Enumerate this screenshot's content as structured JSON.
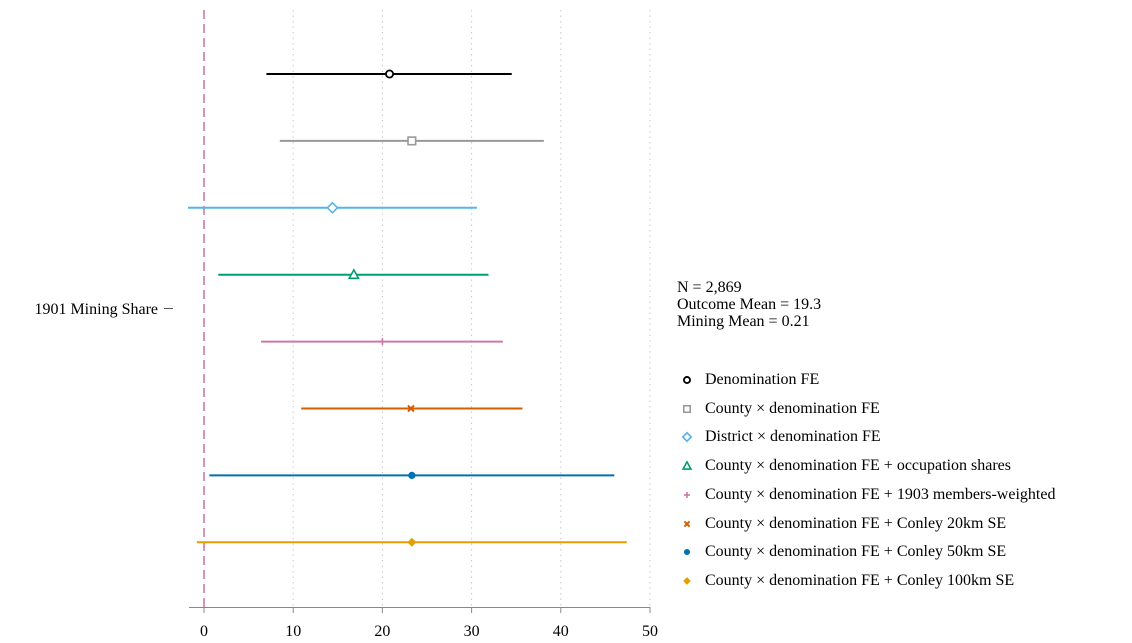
{
  "chart_data": {
    "type": "coefficient-plot",
    "orientation": "horizontal",
    "y_category": "1901 Mining Share",
    "xlim": [
      0,
      50
    ],
    "x_ticks": [
      0,
      10,
      20,
      30,
      40,
      50
    ],
    "grid": "vertical-dotted",
    "reference_line": {
      "x": 0,
      "style": "dashed",
      "color": "#cc79a7"
    },
    "series": [
      {
        "name": "Denomination FE",
        "estimate": 20.8,
        "ci": [
          7.0,
          34.5
        ],
        "marker": "circle-open",
        "color": "#000000"
      },
      {
        "name": "County × denomination FE",
        "estimate": 23.3,
        "ci": [
          8.5,
          38.1
        ],
        "marker": "square-open",
        "color": "#999999"
      },
      {
        "name": "District × denomination FE",
        "estimate": 14.4,
        "ci": [
          -1.8,
          30.6
        ],
        "marker": "diamond-open",
        "color": "#56b4e9"
      },
      {
        "name": "County × denomination FE + occupation shares",
        "estimate": 16.8,
        "ci": [
          1.6,
          31.9
        ],
        "marker": "triangle-open",
        "color": "#009e73"
      },
      {
        "name": "County × denomination FE + 1903 members-weighted",
        "estimate": 20.0,
        "ci": [
          6.4,
          33.5
        ],
        "marker": "plus",
        "color": "#cc79a7"
      },
      {
        "name": "County × denomination FE + Conley 20km SE",
        "estimate": 23.2,
        "ci": [
          10.9,
          35.7
        ],
        "marker": "x",
        "color": "#d55e00"
      },
      {
        "name": "County × denomination FE + Conley 50km SE",
        "estimate": 23.3,
        "ci": [
          0.6,
          46.0
        ],
        "marker": "circle-filled",
        "color": "#0072b2"
      },
      {
        "name": "County × denomination FE + Conley 100km SE",
        "estimate": 23.3,
        "ci": [
          -0.8,
          47.4
        ],
        "marker": "diamond-filled",
        "color": "#e69f00"
      }
    ]
  },
  "annotations": {
    "n": "N = 2,869",
    "outcome_mean": "Outcome Mean = 19.3",
    "mining_mean": "Mining Mean = 0.21"
  }
}
